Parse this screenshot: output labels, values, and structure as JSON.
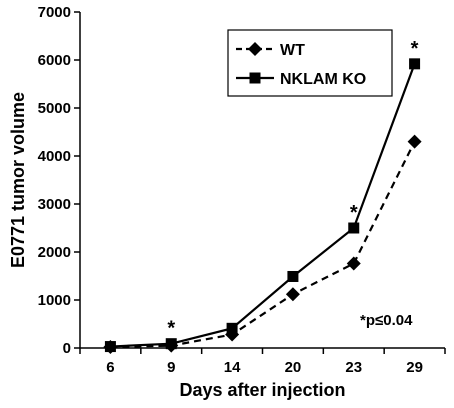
{
  "chart_data": {
    "type": "line",
    "xlabel": "Days after injection",
    "ylabel": "E0771 tumor volume",
    "categories": [
      "6",
      "9",
      "14",
      "20",
      "23",
      "29"
    ],
    "ylim": [
      0,
      7000
    ],
    "yticks": [
      0,
      1000,
      2000,
      3000,
      4000,
      5000,
      6000,
      7000
    ],
    "grid": false,
    "legend_position": "top-right",
    "series": [
      {
        "name": "WT",
        "marker": "diamond",
        "line_style": "dashed",
        "color": "#000000",
        "values": [
          20,
          50,
          280,
          1120,
          1760,
          4300
        ]
      },
      {
        "name": "NKLAM KO",
        "marker": "square",
        "line_style": "solid",
        "color": "#000000",
        "values": [
          30,
          90,
          410,
          1490,
          2500,
          5920
        ]
      }
    ],
    "significance_marks": [
      {
        "category": "9",
        "label": "*"
      },
      {
        "category": "23",
        "label": "*"
      },
      {
        "category": "29",
        "label": "*"
      }
    ],
    "annotation": "*p≤0.04"
  }
}
